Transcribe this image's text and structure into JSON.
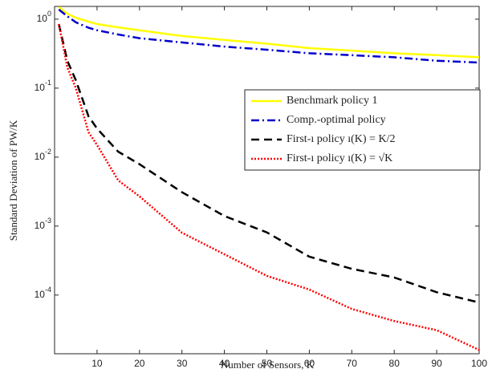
{
  "chart_data": {
    "type": "line",
    "xlabel": "Number of Sensors, K",
    "ylabel": "Standard Deviation of PW/K",
    "x": [
      1,
      3,
      5,
      8,
      10,
      15,
      20,
      30,
      40,
      50,
      60,
      70,
      80,
      90,
      100
    ],
    "series": [
      {
        "name": "Benchmark policy 1",
        "color": "#ffff00",
        "dash": "solid",
        "values": [
          1.5,
          1.2,
          1.05,
          0.92,
          0.85,
          0.76,
          0.69,
          0.57,
          0.5,
          0.44,
          0.38,
          0.35,
          0.32,
          0.3,
          0.28
        ]
      },
      {
        "name": "Comp.-optimal policy",
        "color": "#0000cc",
        "dash": "dashdot",
        "values": [
          1.38,
          1.1,
          0.9,
          0.75,
          0.69,
          0.6,
          0.53,
          0.46,
          0.4,
          0.36,
          0.32,
          0.3,
          0.28,
          0.25,
          0.235
        ]
      },
      {
        "name": "First-ı policy ı(K) = K/2",
        "color": "#000000",
        "dash": "dash",
        "values": [
          0.85,
          0.25,
          0.13,
          0.039,
          0.026,
          0.012,
          0.0079,
          0.0031,
          0.0014,
          0.00081,
          0.00036,
          0.00024,
          0.00018,
          0.00011,
          7.8e-05
        ]
      },
      {
        "name": "First-ı policy ı(K) = √K",
        "color": "#ff0000",
        "dash": "dot",
        "values": [
          0.85,
          0.2,
          0.1,
          0.023,
          0.015,
          0.0046,
          0.0027,
          0.0008,
          0.00039,
          0.00019,
          0.00012,
          6.3e-05,
          4.2e-05,
          3.1e-05,
          1.6e-05
        ]
      }
    ],
    "xlim": [
      0,
      100
    ],
    "xticks": [
      10,
      20,
      30,
      40,
      50,
      60,
      70,
      80,
      90,
      100
    ],
    "ylim": [
      1.41e-05,
      1.53
    ],
    "log_y": true,
    "yticks": [
      {
        "value": 1,
        "label": "10^0"
      },
      {
        "value": 0.1,
        "label": "10^-1"
      },
      {
        "value": 0.01,
        "label": "10^-2"
      },
      {
        "value": 0.001,
        "label": "10^-3"
      },
      {
        "value": 0.0001,
        "label": "10^-4"
      }
    ],
    "legend": "upper right"
  }
}
